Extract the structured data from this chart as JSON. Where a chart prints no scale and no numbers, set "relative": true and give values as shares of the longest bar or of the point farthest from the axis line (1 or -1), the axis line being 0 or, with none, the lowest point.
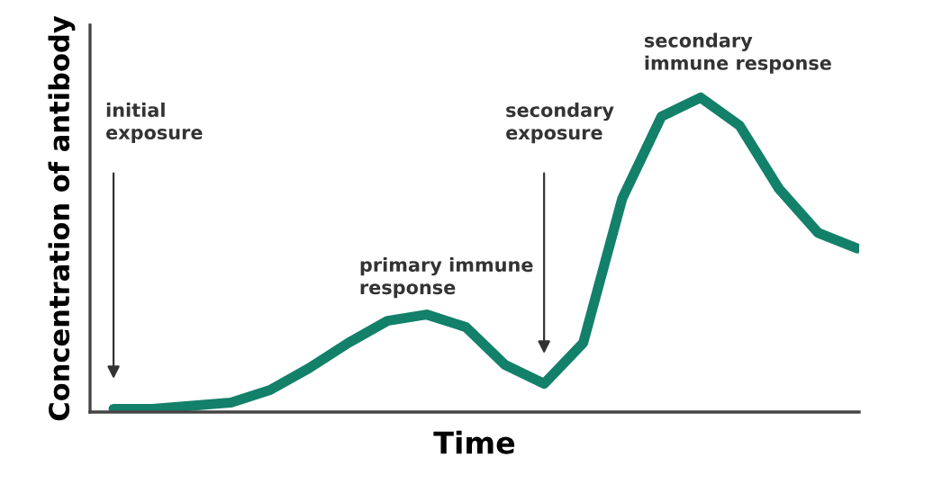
{
  "chart_data": {
    "type": "line",
    "relative": true,
    "xlabel": "Time",
    "ylabel": "Concentration of antibody",
    "categories": [
      null,
      null,
      null,
      null,
      null,
      null,
      null,
      null,
      null,
      null,
      null,
      null,
      null,
      null,
      null,
      null,
      null,
      null,
      null,
      null
    ],
    "series": [
      {
        "color": "#13806a",
        "values": [
          0.01,
          0.01,
          0.02,
          0.03,
          0.07,
          0.14,
          0.22,
          0.29,
          0.31,
          0.27,
          0.15,
          0.09,
          0.22,
          0.68,
          0.94,
          1.0,
          0.91,
          0.71,
          0.57,
          0.52
        ]
      }
    ],
    "annotations": [
      "initial\nexposure",
      "secondary\nexposure",
      "primary immune\nresponse",
      "secondary\nimmune response"
    ],
    "grid": false,
    "legend": false,
    "marker": "none",
    "line_style": "solid"
  }
}
